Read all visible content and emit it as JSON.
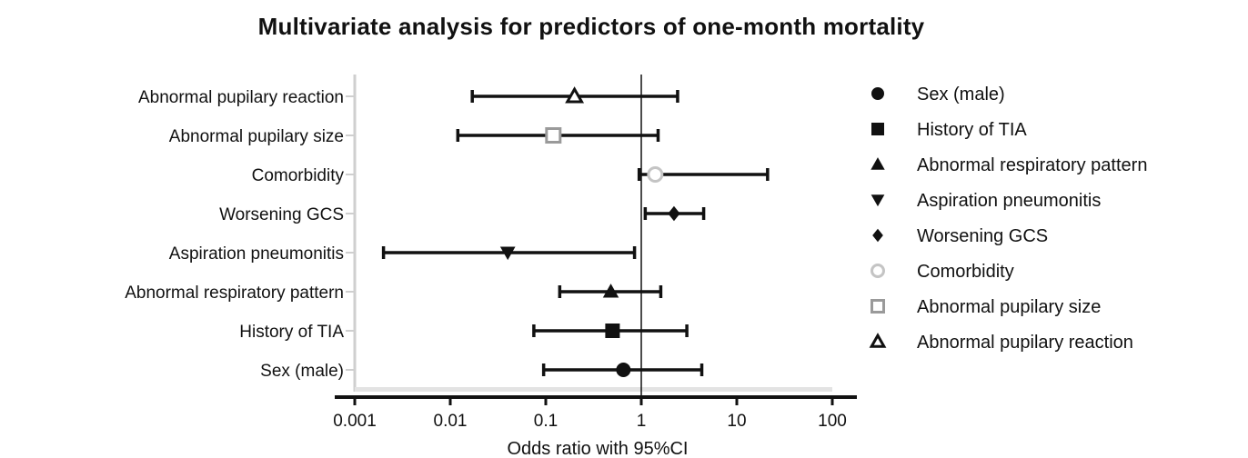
{
  "chart_data": {
    "type": "forest",
    "title": "Multivariate analysis for predictors of one-month mortality",
    "xlabel": "Odds ratio with 95%CI",
    "xscale": "log",
    "xlim": [
      0.001,
      100
    ],
    "xticks": [
      "0.001",
      "0.01",
      "0.1",
      "1",
      "10",
      "100"
    ],
    "reference_line": 1,
    "legend_position": "right",
    "rows": [
      {
        "label": "Abnormal pupilary reaction",
        "or": 0.2,
        "lower": 0.017,
        "upper": 2.4,
        "marker": "triangle-open",
        "color": "#111111"
      },
      {
        "label": "Abnormal pupilary size",
        "or": 0.12,
        "lower": 0.012,
        "upper": 1.5,
        "marker": "square-open",
        "color": "#9a9a9a"
      },
      {
        "label": "Comorbidity",
        "or": 1.4,
        "lower": 0.95,
        "upper": 21,
        "marker": "circle-open",
        "color": "#c4c4c4"
      },
      {
        "label": "Worsening GCS",
        "or": 2.2,
        "lower": 1.1,
        "upper": 4.5,
        "marker": "diamond",
        "color": "#111111"
      },
      {
        "label": "Aspiration pneumonitis",
        "or": 0.04,
        "lower": 0.002,
        "upper": 0.85,
        "marker": "triangle-down",
        "color": "#111111"
      },
      {
        "label": "Abnormal respiratory pattern",
        "or": 0.48,
        "lower": 0.14,
        "upper": 1.6,
        "marker": "triangle",
        "color": "#111111"
      },
      {
        "label": "History of TIA",
        "or": 0.5,
        "lower": 0.075,
        "upper": 3.0,
        "marker": "square",
        "color": "#111111"
      },
      {
        "label": "Sex (male)",
        "or": 0.65,
        "lower": 0.095,
        "upper": 4.3,
        "marker": "circle",
        "color": "#111111"
      }
    ],
    "legend": [
      {
        "label": "Sex (male)",
        "marker": "circle",
        "color": "#111111"
      },
      {
        "label": "History of TIA",
        "marker": "square",
        "color": "#111111"
      },
      {
        "label": "Abnormal respiratory pattern",
        "marker": "triangle",
        "color": "#111111"
      },
      {
        "label": "Aspiration pneumonitis",
        "marker": "triangle-down",
        "color": "#111111"
      },
      {
        "label": "Worsening GCS",
        "marker": "diamond",
        "color": "#111111"
      },
      {
        "label": "Comorbidity",
        "marker": "circle-open",
        "color": "#c4c4c4"
      },
      {
        "label": "Abnormal pupilary size",
        "marker": "square-open",
        "color": "#9a9a9a"
      },
      {
        "label": "Abnormal pupilary reaction",
        "marker": "triangle-open",
        "color": "#111111"
      }
    ]
  }
}
